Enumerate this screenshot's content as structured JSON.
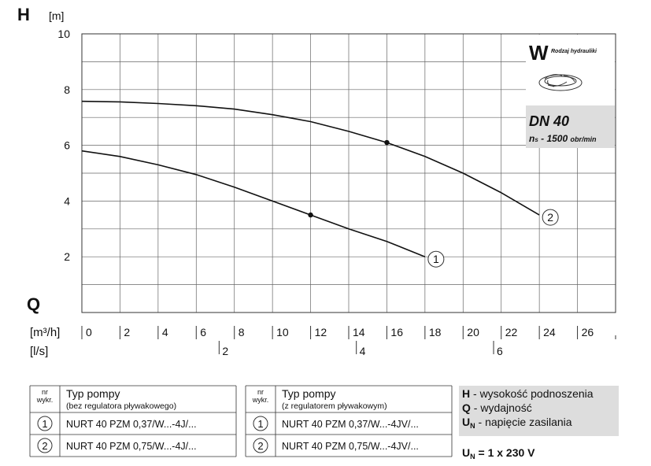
{
  "chart_data": {
    "type": "line",
    "y_symbol": "H",
    "y_unit": "[m]",
    "x_symbol": "Q",
    "x_unit": "[m³/h]",
    "x2_unit": "[l/s]",
    "x": [
      0,
      2,
      4,
      6,
      8,
      10,
      12,
      14,
      16,
      18,
      20,
      22,
      24
    ],
    "series": [
      {
        "name": "1",
        "color": "#111111",
        "duty_point": 12,
        "values": [
          5.8,
          5.6,
          5.3,
          4.95,
          4.5,
          4.0,
          3.5,
          3.0,
          2.55,
          2.0,
          null,
          null,
          null
        ]
      },
      {
        "name": "2",
        "color": "#111111",
        "duty_point": 16,
        "values": [
          7.58,
          7.56,
          7.5,
          7.42,
          7.3,
          7.1,
          6.85,
          6.5,
          6.1,
          5.6,
          5.0,
          4.3,
          3.5
        ]
      }
    ],
    "xlim": [
      0,
      28
    ],
    "xticks": [
      0,
      2,
      4,
      6,
      8,
      10,
      12,
      14,
      16,
      18,
      20,
      22,
      24,
      26
    ],
    "x2lim": [
      0,
      7.7778
    ],
    "x2ticks": [
      2,
      4,
      6
    ],
    "ylim": [
      0,
      10
    ],
    "yticks": [
      2,
      4,
      6,
      8,
      10
    ],
    "yminor_ticks": [
      1,
      3,
      5,
      7,
      9
    ],
    "grid": true,
    "inset": {
      "letter": "W",
      "caption": "Rodzaj hydrauliki",
      "dn": "DN 40",
      "speed_symbol": "n",
      "speed_sub": "s",
      "speed": " - 1500 ",
      "speed_unit": "obr/min"
    }
  },
  "tables": [
    {
      "nr": [
        "nr",
        "wykr."
      ],
      "title": "Typ pompy",
      "subtitle": "(bez regulatora pływakowego)",
      "rows": [
        [
          "1",
          "NURT 40 PZM 0,37/W...-4J/..."
        ],
        [
          "2",
          "NURT 40 PZM 0,75/W...-4J/..."
        ]
      ]
    },
    {
      "nr": [
        "nr",
        "wykr."
      ],
      "title": "Typ pompy",
      "subtitle": "(z regulatorem pływakowym)",
      "rows": [
        [
          "1",
          "NURT 40 PZM 0,37/W...-4JV/..."
        ],
        [
          "2",
          "NURT 40 PZM 0,75/W...-4JV/..."
        ]
      ]
    }
  ],
  "notes": [
    {
      "symbol": "H",
      "sub": "",
      "text": " - wysokość podnoszenia"
    },
    {
      "symbol": "Q",
      "sub": "",
      "text": " - wydajność"
    },
    {
      "symbol": "U",
      "sub": "N",
      "text": " - napięcie zasilania"
    }
  ],
  "supply": {
    "symbol": "U",
    "sub": "N",
    "text": " = 1 x 230 V"
  }
}
